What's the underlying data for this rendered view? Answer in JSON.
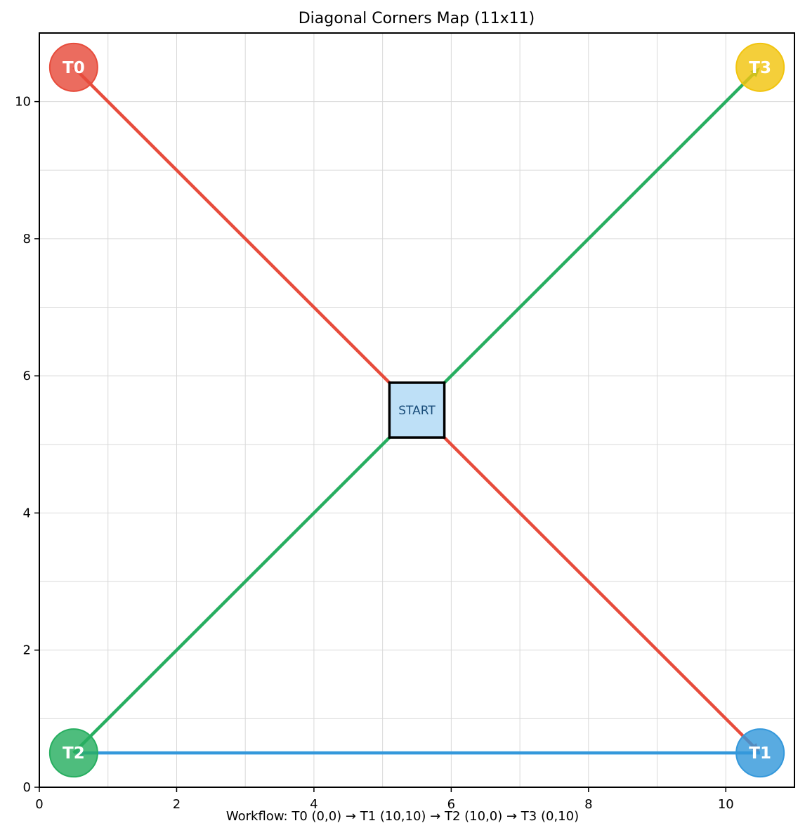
{
  "title": "Diagonal Corners Map (11x11)",
  "footer": "Workflow: T0 (0,0) → T1 (10,10) → T2 (10,0) → T3 (0,10)",
  "start_label": "START",
  "chart_data": {
    "type": "scatter",
    "xlim": [
      0,
      11
    ],
    "ylim": [
      0,
      11
    ],
    "x_ticks": [
      0,
      2,
      4,
      6,
      8,
      10
    ],
    "y_ticks": [
      0,
      2,
      4,
      6,
      8,
      10
    ],
    "minor_grid": [
      1,
      3,
      5,
      7,
      9
    ],
    "grid": true,
    "start": {
      "x": 5.5,
      "y": 5.5,
      "color": "#bee0f7"
    },
    "targets": [
      {
        "label": "T0",
        "x": 0.5,
        "y": 10.5,
        "color": "#e74c3c"
      },
      {
        "label": "T1",
        "x": 10.5,
        "y": 0.5,
        "color": "#3498db"
      },
      {
        "label": "T2",
        "x": 0.5,
        "y": 0.5,
        "color": "#27ae60"
      },
      {
        "label": "T3",
        "x": 10.5,
        "y": 10.5,
        "color": "#f1c40f"
      }
    ],
    "paths": [
      {
        "from": [
          0.5,
          10.5
        ],
        "to": [
          10.5,
          0.5
        ],
        "color": "#e74c3c"
      },
      {
        "from": [
          10.5,
          0.5
        ],
        "to": [
          0.5,
          0.5
        ],
        "color": "#3498db"
      },
      {
        "from": [
          0.5,
          0.5
        ],
        "to": [
          10.5,
          10.5
        ],
        "color": "#27ae60"
      }
    ]
  }
}
